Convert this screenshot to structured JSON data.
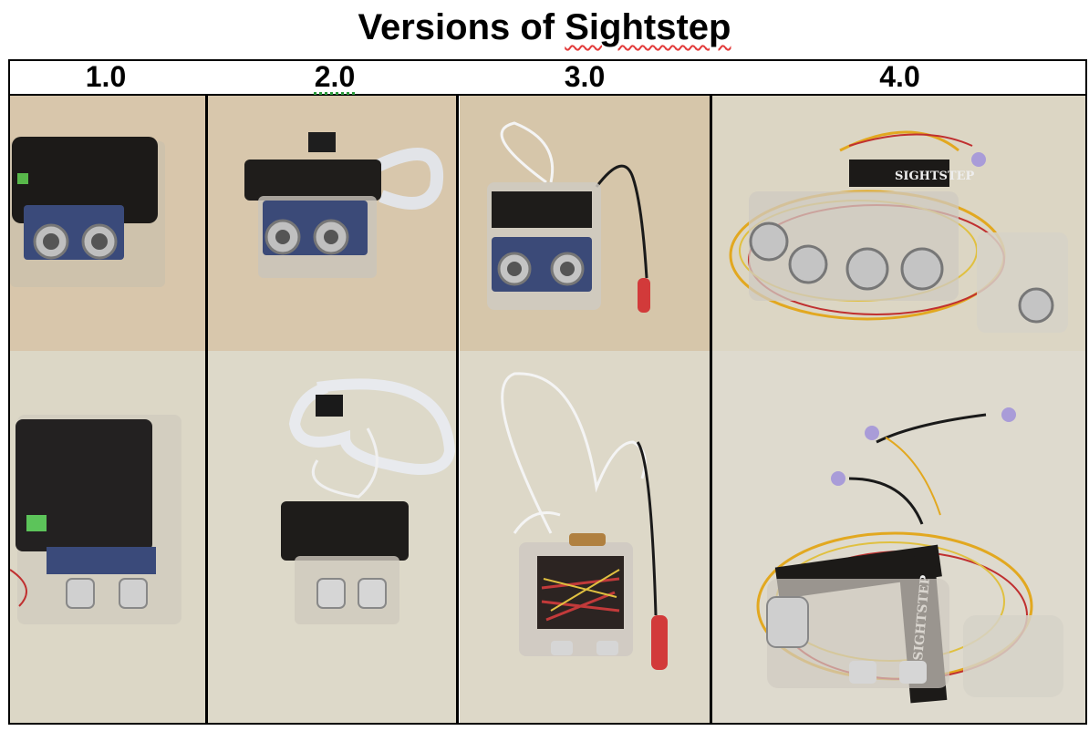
{
  "title": {
    "prefix": "Versions of",
    "name": "Sightstep"
  },
  "versions": [
    {
      "label": "1.0"
    },
    {
      "label": "2.0"
    },
    {
      "label": "3.0"
    },
    {
      "label": "4.0"
    }
  ],
  "device_label_text": "SIGHTSTEP",
  "colors": {
    "carpet_top": "#d6c7ae",
    "carpet_bottom": "#dcd7c8",
    "spell_underline": "#e23b3b",
    "grammar_underline": "#2a9a3a"
  }
}
